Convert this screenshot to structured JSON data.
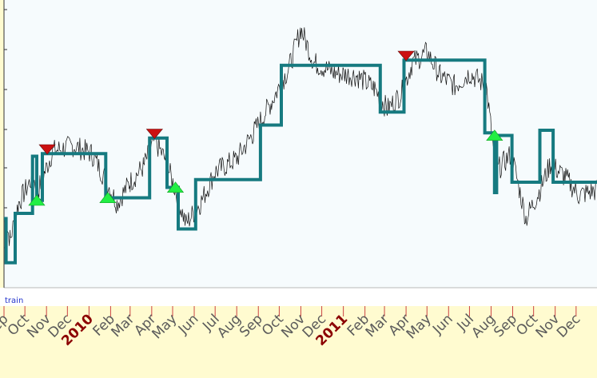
{
  "panel_label": "train",
  "colors": {
    "plot_bg": "#f6fbfd",
    "strip_bg": "#ffffff",
    "axis_bg": "#fffbd0",
    "step_line": "#167a80",
    "price": "#111111",
    "buy_marker": "#22ee44",
    "sell_marker": "#cc1111",
    "month_text": "#5a5a5a",
    "year_text": "#8b0000",
    "label_text": "#2233cc"
  },
  "chart_data": {
    "type": "line",
    "title": "",
    "xlabel": "",
    "ylabel": "",
    "x_range": [
      "2009-09-01",
      "2011-12-31"
    ],
    "y_range": [
      0,
      100
    ],
    "grid": false,
    "month_ticks": [
      {
        "label": "Sep",
        "date": "2009-09-01",
        "year": false
      },
      {
        "label": "Oct",
        "date": "2009-10-01",
        "year": false
      },
      {
        "label": "Nov",
        "date": "2009-11-01",
        "year": false
      },
      {
        "label": "Dec",
        "date": "2009-12-01",
        "year": false
      },
      {
        "label": "2010",
        "date": "2010-01-01",
        "year": true
      },
      {
        "label": "Feb",
        "date": "2010-02-01",
        "year": false
      },
      {
        "label": "Mar",
        "date": "2010-03-01",
        "year": false
      },
      {
        "label": "Apr",
        "date": "2010-04-01",
        "year": false
      },
      {
        "label": "May",
        "date": "2010-05-01",
        "year": false
      },
      {
        "label": "Jun",
        "date": "2010-06-01",
        "year": false
      },
      {
        "label": "Jul",
        "date": "2010-07-01",
        "year": false
      },
      {
        "label": "Aug",
        "date": "2010-08-01",
        "year": false
      },
      {
        "label": "Sep",
        "date": "2010-09-01",
        "year": false
      },
      {
        "label": "Oct",
        "date": "2010-10-01",
        "year": false
      },
      {
        "label": "Nov",
        "date": "2010-11-01",
        "year": false
      },
      {
        "label": "Dec",
        "date": "2010-12-01",
        "year": false
      },
      {
        "label": "2011",
        "date": "2011-01-01",
        "year": true
      },
      {
        "label": "Feb",
        "date": "2011-02-01",
        "year": false
      },
      {
        "label": "Mar",
        "date": "2011-03-01",
        "year": false
      },
      {
        "label": "Apr",
        "date": "2011-04-01",
        "year": false
      },
      {
        "label": "May",
        "date": "2011-05-01",
        "year": false
      },
      {
        "label": "Jun",
        "date": "2011-06-01",
        "year": false
      },
      {
        "label": "Jul",
        "date": "2011-07-01",
        "year": false
      },
      {
        "label": "Aug",
        "date": "2011-08-01",
        "year": false
      },
      {
        "label": "Sep",
        "date": "2011-09-01",
        "year": false
      },
      {
        "label": "Oct",
        "date": "2011-10-01",
        "year": false
      },
      {
        "label": "Nov",
        "date": "2011-11-01",
        "year": false
      },
      {
        "label": "Dec",
        "date": "2011-12-01",
        "year": false
      }
    ],
    "step_series": [
      [
        "2009-09-01",
        22
      ],
      [
        "2009-09-04",
        22
      ],
      [
        "2009-09-04",
        5
      ],
      [
        "2009-09-17",
        5
      ],
      [
        "2009-09-17",
        24
      ],
      [
        "2009-10-12",
        24
      ],
      [
        "2009-10-12",
        46
      ],
      [
        "2009-10-18",
        46
      ],
      [
        "2009-10-18",
        29
      ],
      [
        "2009-10-26",
        29
      ],
      [
        "2009-10-26",
        47
      ],
      [
        "2010-01-25",
        47
      ],
      [
        "2010-01-25",
        30
      ],
      [
        "2010-03-29",
        30
      ],
      [
        "2010-03-29",
        53
      ],
      [
        "2010-04-23",
        53
      ],
      [
        "2010-04-23",
        34
      ],
      [
        "2010-05-09",
        34
      ],
      [
        "2010-05-09",
        18
      ],
      [
        "2010-06-03",
        18
      ],
      [
        "2010-06-03",
        37
      ],
      [
        "2010-09-04",
        37
      ],
      [
        "2010-09-04",
        58
      ],
      [
        "2010-10-04",
        58
      ],
      [
        "2010-10-04",
        81
      ],
      [
        "2011-02-23",
        81
      ],
      [
        "2011-02-23",
        63
      ],
      [
        "2011-03-29",
        63
      ],
      [
        "2011-03-29",
        83
      ],
      [
        "2011-07-23",
        83
      ],
      [
        "2011-07-23",
        55
      ],
      [
        "2011-08-06",
        55
      ],
      [
        "2011-08-06",
        32
      ],
      [
        "2011-08-09",
        32
      ],
      [
        "2011-08-09",
        54
      ],
      [
        "2011-08-31",
        54
      ],
      [
        "2011-08-31",
        36
      ],
      [
        "2011-10-10",
        36
      ],
      [
        "2011-10-10",
        56
      ],
      [
        "2011-10-29",
        56
      ],
      [
        "2011-10-29",
        36
      ],
      [
        "2011-12-31",
        36
      ]
    ],
    "price_anchors": [
      [
        "2009-09-01",
        22
      ],
      [
        "2009-09-10",
        14
      ],
      [
        "2009-09-22",
        28
      ],
      [
        "2009-10-12",
        38
      ],
      [
        "2009-10-20",
        33
      ],
      [
        "2009-11-10",
        48
      ],
      [
        "2009-12-10",
        50
      ],
      [
        "2010-01-05",
        47
      ],
      [
        "2010-01-25",
        37
      ],
      [
        "2010-02-10",
        28
      ],
      [
        "2010-03-01",
        36
      ],
      [
        "2010-03-20",
        42
      ],
      [
        "2010-04-05",
        52
      ],
      [
        "2010-04-20",
        45
      ],
      [
        "2010-05-05",
        33
      ],
      [
        "2010-05-20",
        20
      ],
      [
        "2010-06-10",
        28
      ],
      [
        "2010-07-01",
        40
      ],
      [
        "2010-08-01",
        45
      ],
      [
        "2010-08-25",
        55
      ],
      [
        "2010-09-20",
        67
      ],
      [
        "2010-10-15",
        80
      ],
      [
        "2010-11-01",
        95
      ],
      [
        "2010-11-20",
        82
      ],
      [
        "2010-12-20",
        78
      ],
      [
        "2011-01-20",
        77
      ],
      [
        "2011-02-15",
        72
      ],
      [
        "2011-03-05",
        64
      ],
      [
        "2011-03-25",
        70
      ],
      [
        "2011-04-10",
        82
      ],
      [
        "2011-05-01",
        86
      ],
      [
        "2011-05-20",
        77
      ],
      [
        "2011-06-10",
        73
      ],
      [
        "2011-07-01",
        78
      ],
      [
        "2011-07-25",
        73
      ],
      [
        "2011-08-08",
        40
      ],
      [
        "2011-08-30",
        47
      ],
      [
        "2011-09-20",
        22
      ],
      [
        "2011-10-10",
        33
      ],
      [
        "2011-10-25",
        43
      ],
      [
        "2011-11-15",
        38
      ],
      [
        "2011-12-05",
        31
      ],
      [
        "2011-12-31",
        33
      ]
    ],
    "buy_signals": [
      {
        "date": "2009-10-18",
        "y": 28
      },
      {
        "date": "2010-01-28",
        "y": 29
      },
      {
        "date": "2010-05-05",
        "y": 33
      },
      {
        "date": "2011-08-06",
        "y": 53
      }
    ],
    "sell_signals": [
      {
        "date": "2009-11-02",
        "y": 48
      },
      {
        "date": "2010-04-05",
        "y": 54
      },
      {
        "date": "2011-04-01",
        "y": 84
      }
    ]
  }
}
